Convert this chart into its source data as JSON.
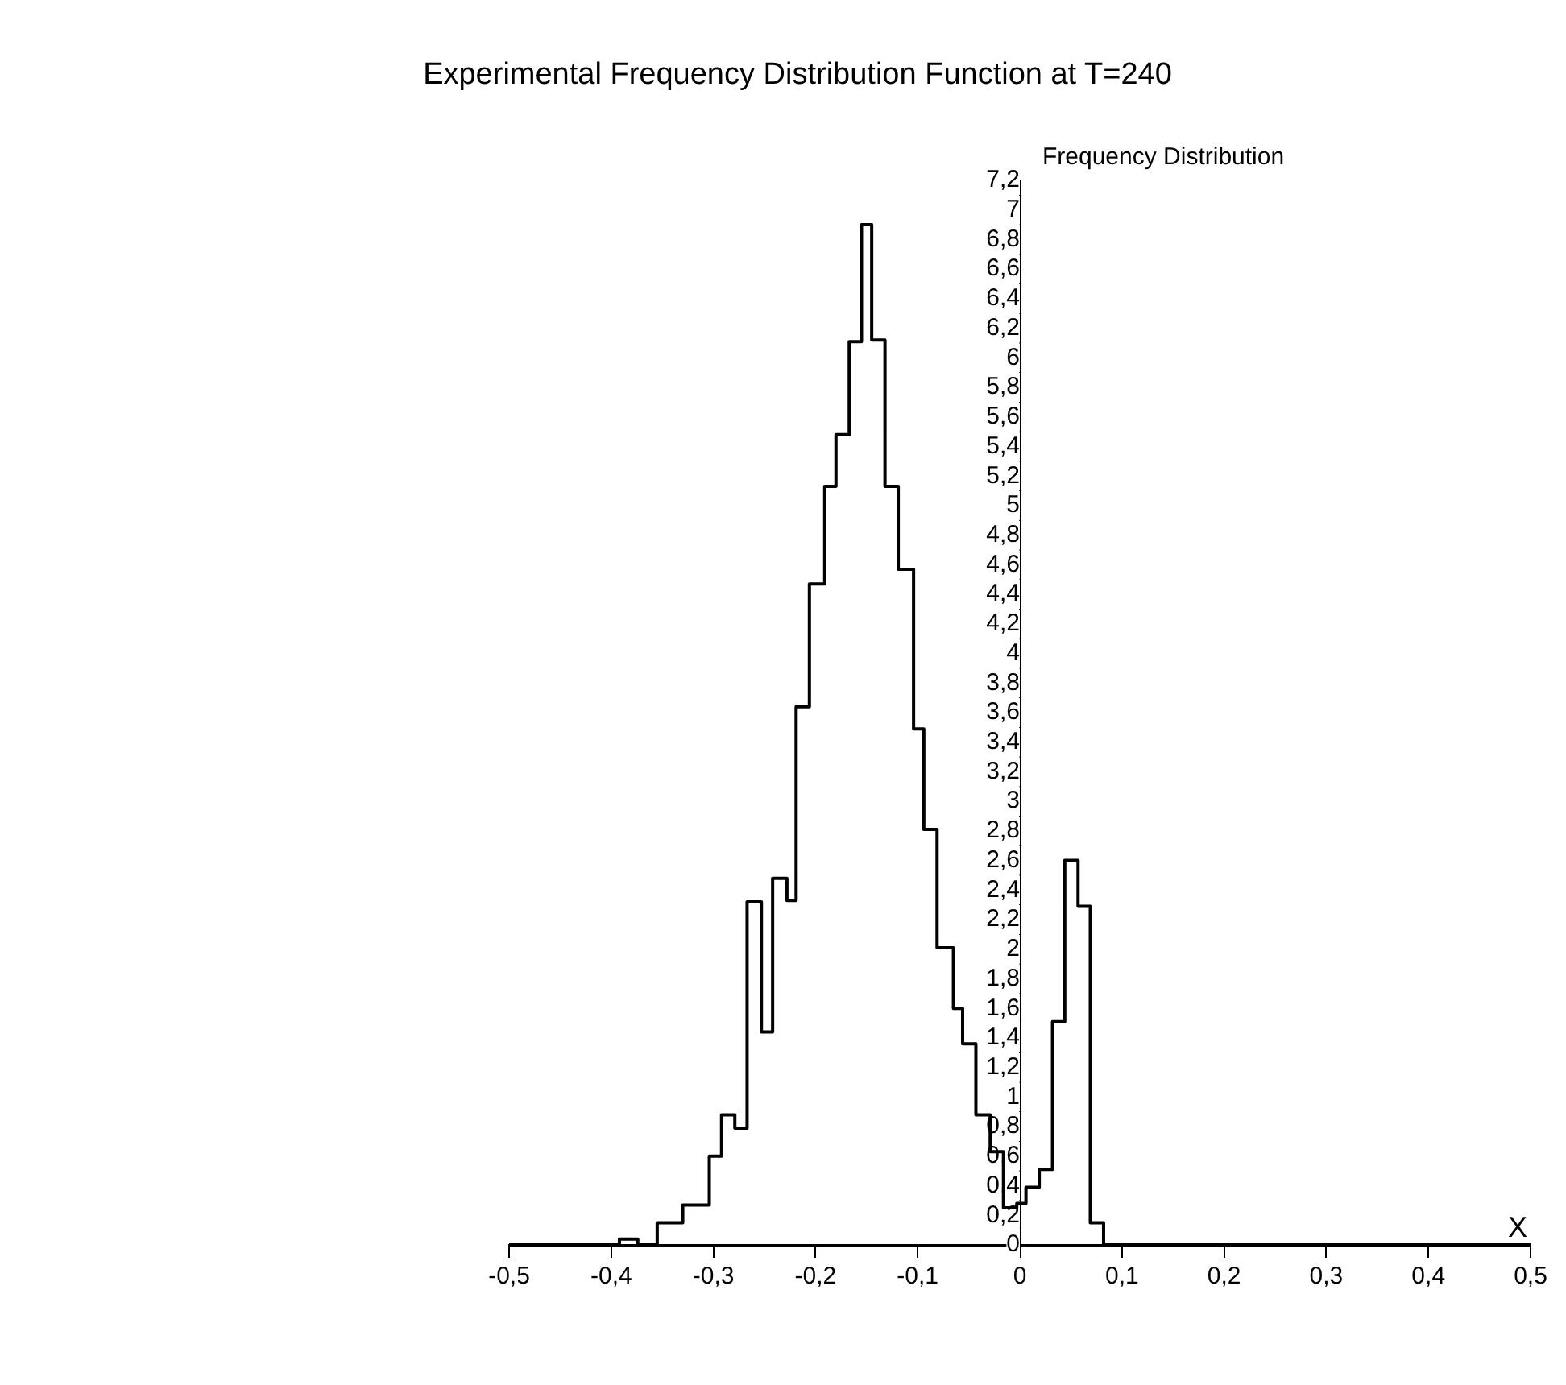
{
  "chart_data": {
    "type": "histogram",
    "title": "Experimental Frequency Distribution Function at T=240",
    "ylabel": "Frequency Distribution",
    "xlabel": "X",
    "bins": [
      -0.5,
      -0.392,
      -0.374,
      -0.355,
      -0.33,
      -0.304,
      -0.292,
      -0.279,
      -0.267,
      -0.253,
      -0.242,
      -0.228,
      -0.219,
      -0.206,
      -0.191,
      -0.18,
      -0.167,
      -0.155,
      -0.145,
      -0.132,
      -0.119,
      -0.104,
      -0.094,
      -0.081,
      -0.065,
      -0.056,
      -0.043,
      -0.029,
      -0.016,
      -0.003,
      0.006,
      0.019,
      0.032,
      0.044,
      0.057,
      0.069,
      0.082,
      0.5
    ],
    "values": [
      0,
      0.04,
      0,
      0.15,
      0.27,
      0.6,
      0.88,
      0.79,
      2.32,
      1.44,
      2.48,
      2.33,
      3.64,
      4.47,
      5.13,
      5.48,
      6.11,
      6.9,
      6.12,
      5.13,
      4.57,
      3.49,
      2.81,
      2.01,
      1.6,
      1.36,
      0.88,
      0.63,
      0.25,
      0.28,
      0.39,
      0.51,
      1.51,
      2.6,
      2.29,
      0.15,
      0
    ],
    "color": "#000000",
    "grid": false,
    "legend": false,
    "xlim": [
      -0.5,
      0.5
    ],
    "xticks": [
      {
        "value": -0.5,
        "label": "-0,5"
      },
      {
        "value": -0.4,
        "label": "-0,4"
      },
      {
        "value": -0.3,
        "label": "-0,3"
      },
      {
        "value": -0.2,
        "label": "-0,2"
      },
      {
        "value": -0.1,
        "label": "-0,1"
      },
      0,
      {
        "value": 0.1,
        "label": "0,1"
      },
      {
        "value": 0.2,
        "label": "0,2"
      },
      {
        "value": 0.3,
        "label": "0,3"
      },
      {
        "value": 0.4,
        "label": "0,4"
      },
      {
        "value": 0.5,
        "label": "0,5"
      }
    ],
    "ylim": [
      0,
      7.2
    ],
    "yticks": [
      0,
      {
        "value": 0.2,
        "label": "0,2"
      },
      {
        "value": 0.4,
        "label": "0,4"
      },
      {
        "value": 0.6,
        "label": "0,6"
      },
      {
        "value": 0.8,
        "label": "0,8"
      },
      1,
      {
        "value": 1.2,
        "label": "1,2"
      },
      {
        "value": 1.4,
        "label": "1,4"
      },
      {
        "value": 1.6,
        "label": "1,6"
      },
      {
        "value": 1.8,
        "label": "1,8"
      },
      2,
      {
        "value": 2.2,
        "label": "2,2"
      },
      {
        "value": 2.4,
        "label": "2,4"
      },
      {
        "value": 2.6,
        "label": "2,6"
      },
      {
        "value": 2.8,
        "label": "2,8"
      },
      3,
      {
        "value": 3.2,
        "label": "3,2"
      },
      {
        "value": 3.4,
        "label": "3,4"
      },
      {
        "value": 3.6,
        "label": "3,6"
      },
      {
        "value": 3.8,
        "label": "3,8"
      },
      4,
      {
        "value": 4.2,
        "label": "4,2"
      },
      {
        "value": 4.4,
        "label": "4,4"
      },
      {
        "value": 4.6,
        "label": "4,6"
      },
      {
        "value": 4.8,
        "label": "4,8"
      },
      5,
      {
        "value": 5.2,
        "label": "5,2"
      },
      {
        "value": 5.4,
        "label": "5,4"
      },
      {
        "value": 5.6,
        "label": "5,6"
      },
      {
        "value": 5.8,
        "label": "5,8"
      },
      6,
      {
        "value": 6.2,
        "label": "6,2"
      },
      {
        "value": 6.4,
        "label": "6,4"
      },
      {
        "value": 6.6,
        "label": "6,6"
      },
      {
        "value": 6.8,
        "label": "6,8"
      },
      7,
      {
        "value": 7.2,
        "label": "7,2"
      }
    ]
  }
}
